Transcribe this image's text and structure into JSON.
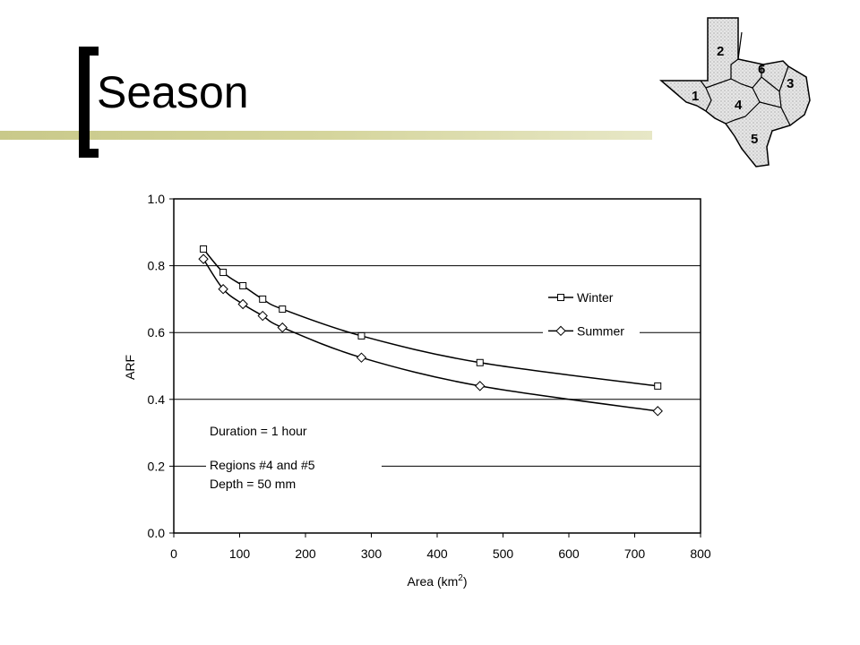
{
  "slide": {
    "title": "Season"
  },
  "map": {
    "region_labels": [
      "1",
      "2",
      "3",
      "4",
      "5",
      "6"
    ]
  },
  "chart_data": {
    "type": "line",
    "xlabel": "Area (km2)",
    "xlabel_base": "Area (km",
    "xlabel_sup": "2",
    "xlabel_close": ")",
    "ylabel": "ARF",
    "xlim": [
      0,
      800
    ],
    "ylim": [
      0.0,
      1.0
    ],
    "x_ticks": [
      0,
      100,
      200,
      300,
      400,
      500,
      600,
      700,
      800
    ],
    "x_tick_labels": [
      "0",
      "100",
      "200",
      "300",
      "400",
      "500",
      "600",
      "700",
      "800"
    ],
    "y_ticks": [
      0.0,
      0.2,
      0.4,
      0.6,
      0.8,
      1.0
    ],
    "y_tick_labels": [
      "0.0",
      "0.2",
      "0.4",
      "0.6",
      "0.8",
      "1.0"
    ],
    "grid": "horizontal",
    "legend": "right",
    "series": [
      {
        "name": "Winter",
        "marker": "square",
        "x": [
          45,
          75,
          105,
          135,
          165,
          285,
          465,
          735
        ],
        "y": [
          0.85,
          0.78,
          0.74,
          0.7,
          0.67,
          0.59,
          0.51,
          0.44
        ]
      },
      {
        "name": "Summer",
        "marker": "diamond",
        "x": [
          45,
          75,
          105,
          135,
          165,
          285,
          465,
          735
        ],
        "y": [
          0.82,
          0.73,
          0.685,
          0.65,
          0.615,
          0.525,
          0.44,
          0.365
        ]
      }
    ],
    "annotations": [
      "Duration = 1 hour",
      "Regions #4 and #5",
      "Depth = 50 mm"
    ]
  }
}
